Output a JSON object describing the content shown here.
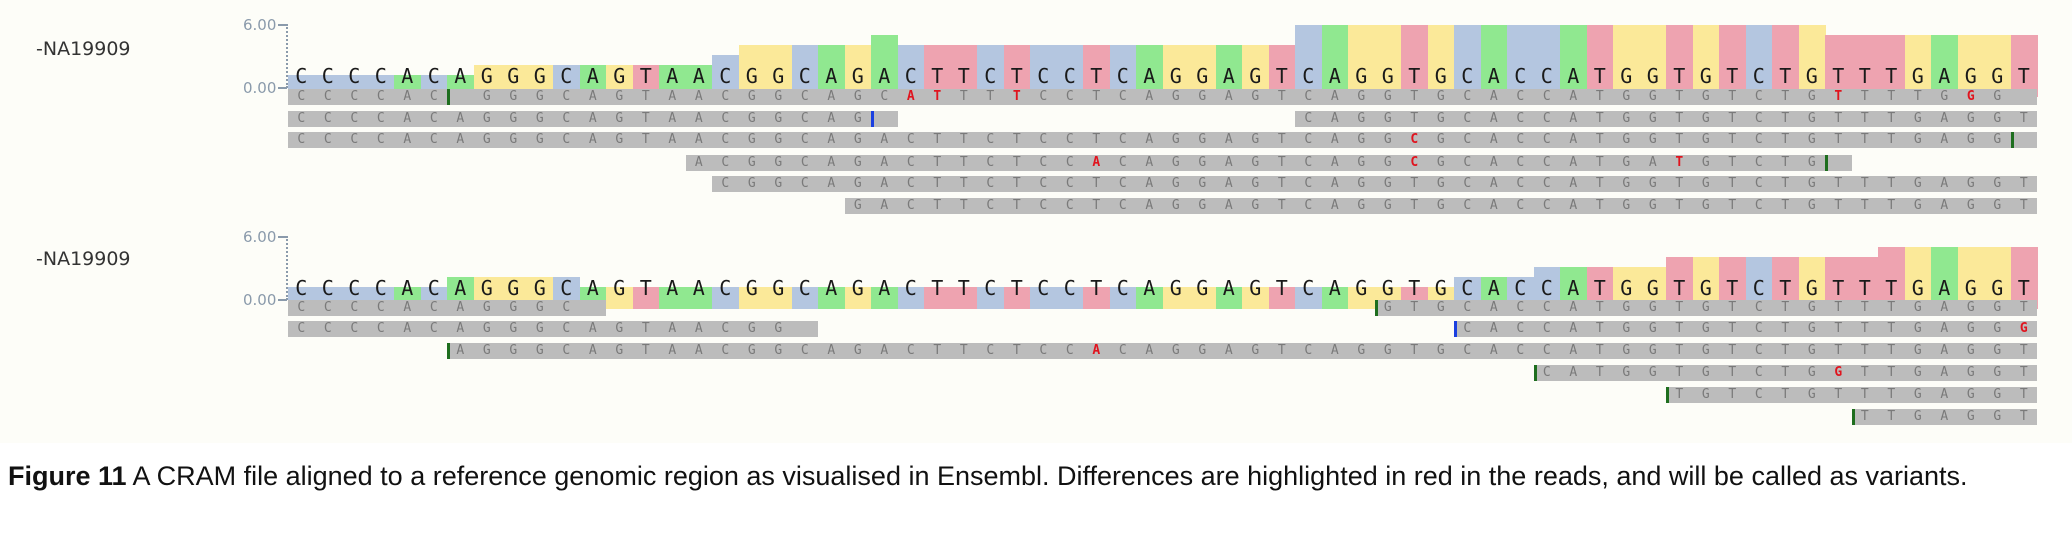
{
  "colors": {
    "A": "#90e890",
    "C": "#b4c6e0",
    "G": "#fbe999",
    "T": "#eea3b0",
    "mismatch": "#e0141e",
    "insertion": "#1a3fe0",
    "clip": "#1e6e1e"
  },
  "tracks": [
    {
      "label": "-NA19909",
      "axis_max": "6.00",
      "axis_min": "0.00",
      "reference": "CCCCACAGGGCAGTAACGGCAGACTTCTCCTCAGGAGTCAGGTGCACCATGGTGTCTGTTTGAGGT",
      "coverage": [
        1,
        1,
        1,
        1,
        1,
        1,
        1,
        2,
        2,
        2,
        2,
        2,
        2,
        2,
        2,
        2,
        3,
        4,
        4,
        4,
        4,
        4,
        5,
        4,
        4,
        4,
        4,
        4,
        4,
        4,
        4,
        4,
        4,
        4,
        4,
        4,
        4,
        4,
        6,
        6,
        6,
        6,
        6,
        6,
        6,
        6,
        6,
        6,
        6,
        6,
        6,
        6,
        6,
        6,
        6,
        6,
        6,
        6,
        5,
        5,
        5,
        5,
        5,
        5,
        5,
        5
      ],
      "reads": [
        {
          "start": 0,
          "seq": "CCCCAC GGGCAGTAACGGCAGCATTTTCCTCAGGAGTCAGGTGCACCATGGTGTCTGTTTTGGG",
          "marks": [
            {
              "pos": 6,
              "type": "clip"
            }
          ],
          "mm": [
            23,
            24,
            27,
            58,
            63
          ],
          "end": 66
        },
        {
          "start": 0,
          "seq": "CCCCACAGGGCAGTAACGGCAG",
          "marks": [
            {
              "pos": 22,
              "type": "insertion"
            }
          ],
          "mm": [],
          "end": 23,
          "second": {
            "start": 38,
            "seq": "CAGGTGCACCATGGTGTCTGTTTGAGGT",
            "end": 66
          }
        },
        {
          "start": 0,
          "seq": "CCCCACAGGGCAGTAACGGCAGACTTCTCCTCAGGAGTCAGGCGCACCATGGTGTCTGTTTGAGG",
          "marks": [
            {
              "pos": 65,
              "type": "clip"
            }
          ],
          "mm": [
            42
          ],
          "end": 66
        },
        {
          "start": 15,
          "seq": "ACGGCAGACTTCTCCACAGGAGTCAGGCGCACCATGATGTCTG",
          "marks": [
            {
              "pos": 58,
              "type": "clip"
            }
          ],
          "mm": [
            30,
            42,
            52
          ],
          "end": 59
        },
        {
          "start": 16,
          "seq": "CGGCAGACTTCTCCTCAGGAGTCAGGTGCACCATGGTGTCTGTTTGAGGT",
          "marks": [],
          "mm": [],
          "end": 66
        },
        {
          "start": 21,
          "seq": "GACTTCTCCTCAGGAGTCAGGTGCACCATGGTGTCTGTTTGAGGT",
          "marks": [],
          "mm": [],
          "end": 66
        }
      ]
    },
    {
      "label": "-NA19909",
      "axis_max": "6.00",
      "axis_min": "0.00",
      "reference": "CCCCACAGGGCAGTAACGGCAGACTTCTCCTCAGGAGTCAGGTGCACCATGGTGTCTGTTTGAGGT",
      "coverage": [
        1,
        1,
        1,
        1,
        1,
        1,
        2,
        2,
        2,
        2,
        2,
        1,
        1,
        1,
        1,
        1,
        1,
        1,
        1,
        1,
        1,
        1,
        1,
        1,
        1,
        1,
        1,
        1,
        1,
        1,
        1,
        1,
        1,
        1,
        1,
        1,
        1,
        1,
        1,
        1,
        1,
        1,
        1,
        1,
        2,
        2,
        2,
        3,
        3,
        3,
        3,
        3,
        4,
        4,
        4,
        4,
        4,
        4,
        4,
        4,
        5,
        5,
        5,
        5,
        5,
        5
      ],
      "reads": [
        {
          "start": 0,
          "seq": "CCCCACAGGGC",
          "marks": [],
          "mm": [],
          "end": 12,
          "second": {
            "start": 41,
            "seq": "GTGCACCATGGTGTCTGTTTGAGGT",
            "end": 66,
            "clipAt": 41
          }
        },
        {
          "start": 0,
          "seq": "CCCCACAGGGCAGTAACGG",
          "marks": [],
          "mm": [],
          "end": 20,
          "second": {
            "start": 44,
            "seq": "CACCATGGTGTCTGTTTGAGGG",
            "end": 66,
            "insAt": 44,
            "mmAbs": [
              65
            ]
          }
        },
        {
          "start": 6,
          "seq": "AGGGCAGTAACGGCAGACTTCTCCACAGGAGTCAGGTGCACCATGGTGTCTGTTTGAGGT",
          "marks": [
            {
              "pos": 6,
              "type": "clip"
            }
          ],
          "mm": [
            30
          ],
          "end": 66
        },
        {
          "start": 47,
          "seq": "CATGGTGTCTGGTTGAGGT",
          "marks": [
            {
              "pos": 47,
              "type": "clip"
            }
          ],
          "mm": [
            58
          ],
          "end": 66
        },
        {
          "start": 52,
          "seq": "TGTCTGTTTGAGGT",
          "marks": [
            {
              "pos": 52,
              "type": "clip"
            }
          ],
          "mm": [],
          "end": 66
        },
        {
          "start": 59,
          "seq": "TTGAGGT",
          "marks": [
            {
              "pos": 59,
              "type": "clip"
            }
          ],
          "mm": [],
          "end": 66
        }
      ]
    }
  ],
  "caption": {
    "label": "Figure 11",
    "text": " A CRAM file aligned to a reference genomic region as visualised in Ensembl. Differences are highlighted in red in the reads, and will be called as variants."
  }
}
